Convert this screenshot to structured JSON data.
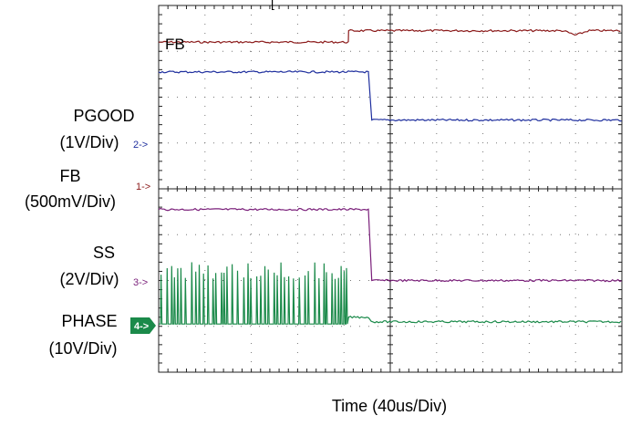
{
  "chart_data": {
    "type": "line",
    "title": "",
    "xlabel": "Time  (40us/Div)",
    "ylabel": "",
    "x_divisions": 10,
    "y_divisions": 8,
    "grid": true,
    "top_label_fragment": "[",
    "trace_tag": "FB",
    "channels": [
      {
        "label": "PGOOD",
        "scale": "(1V/Div)",
        "marker": "2->",
        "color": "#1f2f9e",
        "ground_div": 3.65
      },
      {
        "label": "FB",
        "scale": "(500mV/Div)",
        "marker": "1->",
        "color": "#8b1a1a",
        "ground_div": 4.0
      },
      {
        "label": "SS",
        "scale": "(2V/Div)",
        "marker": "3->",
        "color": "#7a1f7a",
        "ground_div": 5.85
      },
      {
        "label": "PHASE",
        "scale": "(10V/Div)",
        "marker": "4->",
        "color": "#1b8a4a",
        "ground_div": 6.65
      }
    ],
    "series": [
      {
        "name": "FB",
        "color": "#8b1a1a",
        "x": [
          0,
          4.1,
          4.1,
          10
        ],
        "y": [
          7.2,
          7.2,
          7.45,
          7.45
        ],
        "notch_x": 9.0,
        "notch_depth": 0.1
      },
      {
        "name": "PGOOD",
        "color": "#1f2f9e",
        "x": [
          0,
          4.55,
          4.6,
          10
        ],
        "y": [
          6.55,
          6.55,
          5.5,
          5.5
        ]
      },
      {
        "name": "SS",
        "color": "#7a1f7a",
        "x": [
          0,
          4.55,
          4.6,
          10
        ],
        "y": [
          3.55,
          3.55,
          2.0,
          2.0
        ]
      },
      {
        "name": "PHASE",
        "color": "#1b8a4a",
        "x": [
          0,
          4.55,
          4.6,
          10
        ],
        "y": [
          1.05,
          1.05,
          1.1,
          1.1
        ],
        "switching_start": 0,
        "switching_end": 4.1,
        "pulse_peak": 2.4,
        "plateau": 1.2
      }
    ]
  }
}
